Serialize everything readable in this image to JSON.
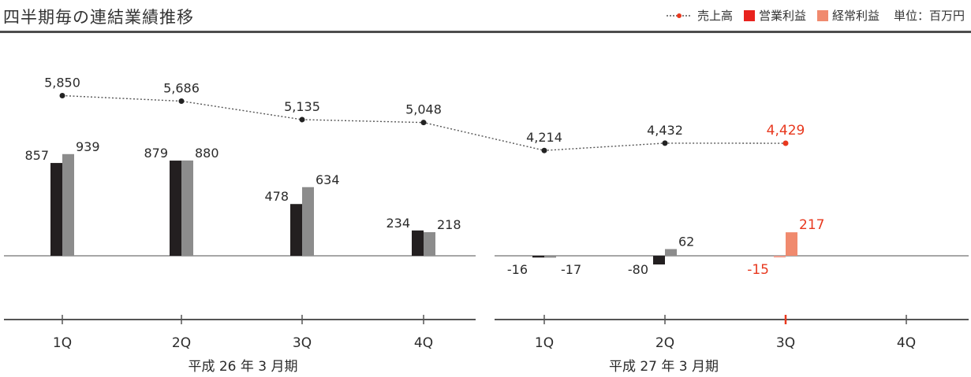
{
  "header": {
    "title": "四半期毎の連結業績推移",
    "unit": "単位：百万円"
  },
  "legend": [
    {
      "name": "売上高",
      "color": "#555555",
      "marker": "#e8381e",
      "kind": "line"
    },
    {
      "name": "営業利益",
      "color": "#e8221e",
      "kind": "box"
    },
    {
      "name": "経常利益",
      "color": "#f08a6e",
      "kind": "box"
    }
  ],
  "colors": {
    "op_bar": "#231f20",
    "ord_bar": "#8c8c8c",
    "op_bar_hi": "#f0a090",
    "ord_bar_hi": "#f08a6e",
    "highlight_text": "#e8381e"
  },
  "chart_data": {
    "type": "bar",
    "groups": [
      {
        "label": "平成 26 年 3 月期",
        "highlight": false,
        "categories": [
          "1Q",
          "2Q",
          "3Q",
          "4Q"
        ]
      },
      {
        "label": "平成 27 年 3 月期",
        "highlight": true,
        "categories": [
          "1Q",
          "2Q",
          "3Q",
          "4Q"
        ]
      }
    ],
    "x": [
      "1Q",
      "2Q",
      "3Q",
      "4Q",
      "1Q",
      "2Q",
      "3Q",
      "4Q"
    ],
    "series": [
      {
        "name": "売上高",
        "kind": "line",
        "values": [
          5850,
          5686,
          5135,
          5048,
          4214,
          4432,
          4429,
          null
        ]
      },
      {
        "name": "営業利益",
        "kind": "bar",
        "values": [
          857,
          879,
          478,
          234,
          -16,
          -80,
          -15,
          null
        ]
      },
      {
        "name": "経常利益",
        "kind": "bar",
        "values": [
          939,
          880,
          634,
          218,
          -17,
          62,
          217,
          null
        ]
      }
    ],
    "highlight_index": 6,
    "grid": false,
    "legend_position": "top-right"
  }
}
